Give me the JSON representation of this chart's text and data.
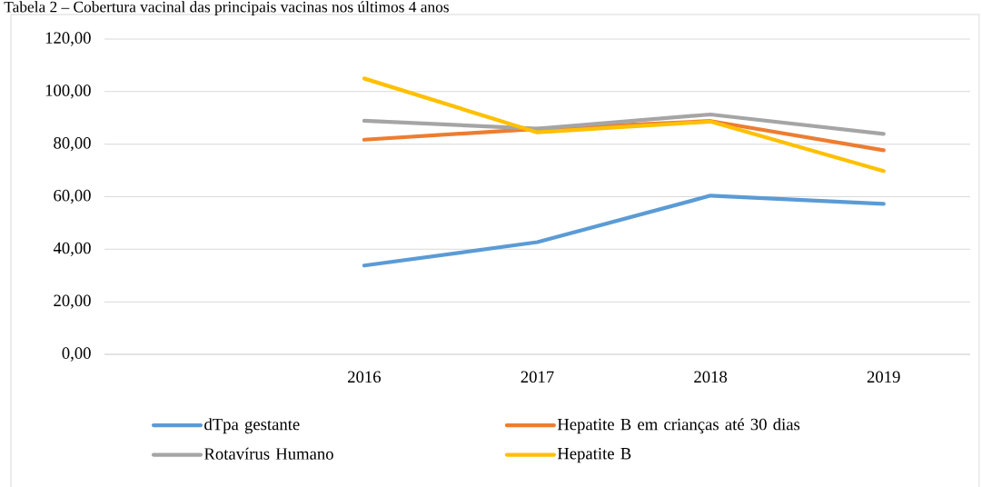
{
  "chart_data": {
    "type": "line",
    "title": "Tabela 2 – Cobertura vacinal das principais vacinas nos últimos 4 anos",
    "categories": [
      null,
      "2016",
      "2017",
      "2018",
      "2019"
    ],
    "series": [
      {
        "name": "dTpa gestante",
        "color": "#5b9bd5",
        "values": [
          null,
          33.8,
          42.7,
          60.4,
          57.3
        ]
      },
      {
        "name": "Hepatite B em crianças até 30 dias",
        "color": "#ed7d31",
        "values": [
          null,
          81.7,
          85.8,
          88.8,
          77.7
        ]
      },
      {
        "name": "Rotavírus Humano",
        "color": "#a5a5a5",
        "values": [
          null,
          88.9,
          85.9,
          91.3,
          83.9
        ]
      },
      {
        "name": "Hepatite B",
        "color": "#ffc000",
        "values": [
          null,
          105.0,
          84.5,
          88.6,
          69.8
        ]
      }
    ],
    "ylim": [
      0,
      120
    ],
    "yticks": [
      {
        "value": 0,
        "label": "0,00"
      },
      {
        "value": 20,
        "label": "20,00"
      },
      {
        "value": 40,
        "label": "40,00"
      },
      {
        "value": 60,
        "label": "60,00"
      },
      {
        "value": 80,
        "label": "80,00"
      },
      {
        "value": 100,
        "label": "100,00"
      },
      {
        "value": 120,
        "label": "120,00"
      }
    ],
    "grid": "y",
    "legend": "bottom"
  }
}
